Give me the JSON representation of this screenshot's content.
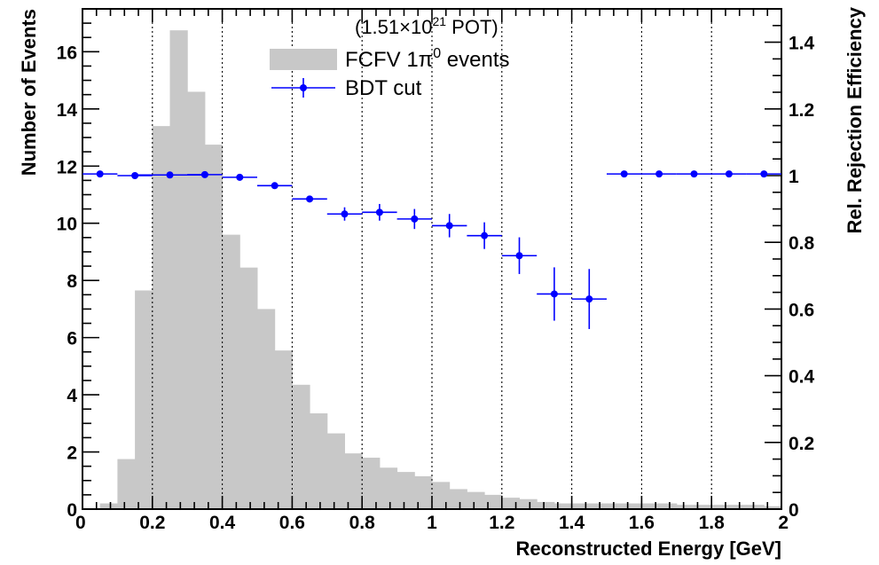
{
  "chart_data": {
    "type": "bar",
    "title": "",
    "annotation_parts": {
      "prefix": "(1.51×10",
      "exponent": "21",
      "suffix": " POT)"
    },
    "xlabel": "Reconstructed Energy [GeV]",
    "ylabel": "Number of Events",
    "y2label": "Rel. Rejection Efficiency",
    "xlim": [
      0,
      2
    ],
    "ylim": [
      0,
      17.5
    ],
    "y2lim": [
      0,
      1.5
    ],
    "x_ticks": [
      0,
      0.2,
      0.4,
      0.6,
      0.8,
      1,
      1.2,
      1.4,
      1.6,
      1.8,
      2
    ],
    "x_tick_labels": [
      "0",
      "0.2",
      "0.4",
      "0.6",
      "0.8",
      "1",
      "1.2",
      "1.4",
      "1.6",
      "1.8",
      "2"
    ],
    "y_ticks": [
      0,
      2,
      4,
      6,
      8,
      10,
      12,
      14,
      16
    ],
    "y_tick_labels": [
      "0",
      "2",
      "4",
      "6",
      "8",
      "10",
      "12",
      "14",
      "16"
    ],
    "y2_ticks": [
      0,
      0.2,
      0.4,
      0.6,
      0.8,
      1,
      1.2,
      1.4
    ],
    "y2_tick_labels": [
      "0",
      "0.2",
      "0.4",
      "0.6",
      "0.8",
      "1",
      "1.2",
      "1.4"
    ],
    "grid_x": [
      0.2,
      0.4,
      0.6,
      0.8,
      1.0,
      1.2,
      1.4,
      1.6,
      1.8
    ],
    "legend_position": "top-center",
    "histogram": {
      "name_parts": {
        "prefix": "FCFV 1π",
        "superscript": "0",
        "suffix": " events"
      },
      "color": "#c8c8c8",
      "bin_width": 0.05,
      "bin_edges_start": [
        0.0,
        0.05,
        0.1,
        0.15,
        0.2,
        0.25,
        0.3,
        0.35,
        0.4,
        0.45,
        0.5,
        0.55,
        0.6,
        0.65,
        0.7,
        0.75,
        0.8,
        0.85,
        0.9,
        0.95,
        1.0,
        1.05,
        1.1,
        1.15,
        1.2,
        1.25,
        1.3,
        1.35,
        1.4,
        1.45,
        1.5,
        1.55,
        1.6,
        1.65,
        1.7,
        1.75,
        1.8,
        1.85,
        1.9,
        1.95
      ],
      "values": [
        0.0,
        0.2,
        1.75,
        7.65,
        13.4,
        16.75,
        14.6,
        12.75,
        9.6,
        8.45,
        7.0,
        5.55,
        4.35,
        3.35,
        2.65,
        1.95,
        1.8,
        1.45,
        1.3,
        1.15,
        0.95,
        0.7,
        0.6,
        0.5,
        0.4,
        0.35,
        0.25,
        0.2,
        0.2,
        0.2,
        0.2,
        0.2,
        0.2,
        0.2,
        0.15,
        0.15,
        0.15,
        0.15,
        0.15,
        0.1
      ]
    },
    "series": [
      {
        "name": "BDT cut",
        "color": "#0000ff",
        "axis": "right",
        "x": [
          0.05,
          0.15,
          0.25,
          0.35,
          0.45,
          0.55,
          0.65,
          0.75,
          0.85,
          0.95,
          1.05,
          1.15,
          1.25,
          1.35,
          1.45,
          1.55,
          1.65,
          1.75,
          1.85,
          1.95
        ],
        "x_half_width": [
          0.05,
          0.05,
          0.1,
          0.05,
          0.05,
          0.05,
          0.05,
          0.05,
          0.05,
          0.05,
          0.05,
          0.05,
          0.05,
          0.05,
          0.05,
          0.05,
          0.05,
          0.05,
          0.05,
          0.05
        ],
        "values": [
          1.005,
          1.0,
          1.002,
          1.003,
          0.995,
          0.97,
          0.93,
          0.885,
          0.89,
          0.87,
          0.85,
          0.82,
          0.76,
          0.645,
          0.63,
          1.005,
          1.005,
          1.005,
          1.005,
          1.005
        ],
        "errors": [
          0.0,
          0.005,
          0.005,
          0.005,
          0.01,
          0.01,
          0.01,
          0.02,
          0.025,
          0.03,
          0.035,
          0.04,
          0.055,
          0.08,
          0.09,
          0.0,
          0.0,
          0.0,
          0.0,
          0.0
        ]
      }
    ]
  }
}
